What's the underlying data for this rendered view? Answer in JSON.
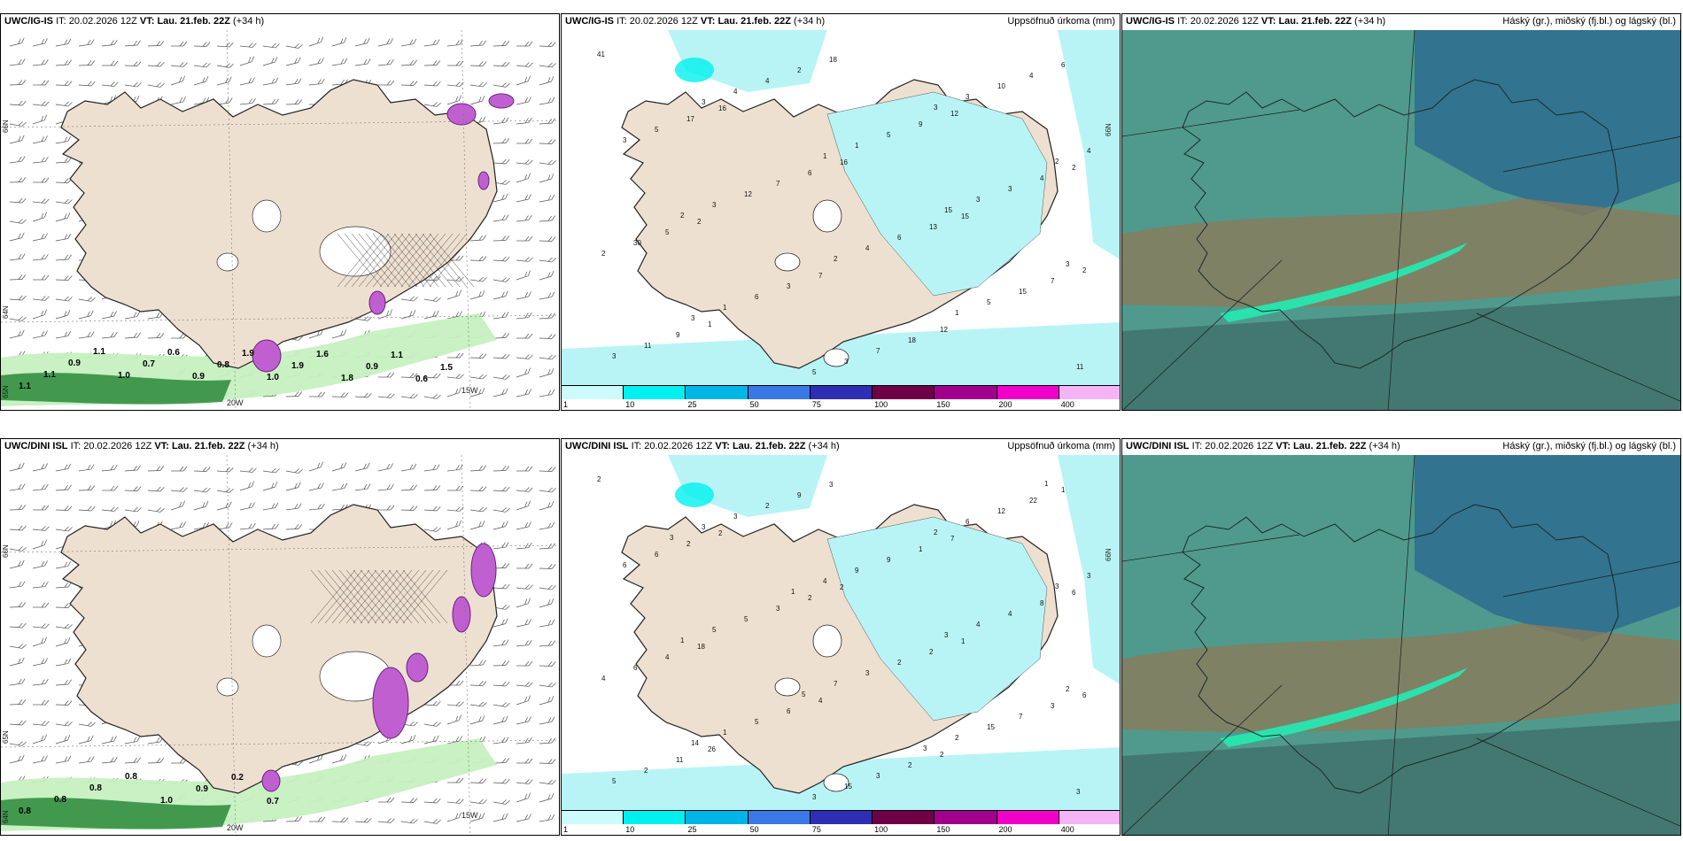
{
  "rows": [
    {
      "model": "UWC/IG-IS",
      "it_label": "IT:",
      "it": "20.02.2026 12Z",
      "vt_label": "VT:",
      "vt": "Lau. 21.feb. 22Z",
      "lead": "(+34 h)",
      "lon_labels": [
        "20W",
        "15W"
      ],
      "lat_labels": [
        "66N",
        "64N",
        "65N"
      ],
      "gust_values": [
        "1.1",
        "1.1",
        "0.9",
        "1.1",
        "1.0",
        "0.7",
        "0.6",
        "0.9",
        "0.8",
        "1.9",
        "1.0",
        "1.9",
        "1.6",
        "1.8",
        "0.9",
        "1.1",
        "0.6",
        "1.5"
      ],
      "precip_values": [
        "41",
        "16",
        "16",
        "15",
        "2",
        "1",
        "18",
        "12",
        "2",
        "2",
        "7",
        "12",
        "6",
        "17",
        "6",
        "13",
        "7",
        "9",
        "2",
        "9",
        "4",
        "5",
        "3",
        "18",
        "4",
        "5",
        "7",
        "6",
        "15",
        "11",
        "4",
        "5",
        "3",
        "30",
        "6",
        "7",
        "10",
        "3",
        "12",
        "4",
        "5",
        "3",
        "4",
        "1",
        "3",
        "2",
        "1",
        "3",
        "3",
        "4",
        "3",
        "2",
        "1",
        "11",
        "3",
        "1",
        "15",
        "3",
        "3",
        "5",
        "3",
        "2",
        "2"
      ]
    },
    {
      "model": "UWC/DINI ISL",
      "it_label": "IT:",
      "it": "20.02.2026 12Z",
      "vt_label": "VT:",
      "vt": "Lau. 21.feb. 22Z",
      "lead": "(+34 h)",
      "lon_labels": [
        "20W",
        "15W"
      ],
      "lat_labels": [
        "66N",
        "65N",
        "64N"
      ],
      "gust_values": [
        "0.8",
        "0.8",
        "0.8",
        "0.8",
        "1.0",
        "0.9",
        "0.2",
        "0.7"
      ],
      "precip_values": [
        "2",
        "2",
        "2",
        "1",
        "6",
        "26",
        "3",
        "7",
        "6",
        "18",
        "4",
        "2",
        "1",
        "2",
        "2",
        "2",
        "3",
        "11",
        "9",
        "1",
        "8",
        "4",
        "6",
        "2",
        "22",
        "6",
        "3",
        "2",
        "7",
        "2",
        "2",
        "9",
        "4",
        "6",
        "5",
        "3",
        "12",
        "6",
        "5",
        "3",
        "15",
        "5",
        "3",
        "9",
        "4",
        "4",
        "1",
        "15",
        "6",
        "3",
        "5",
        "7",
        "2",
        "3",
        "3",
        "4",
        "3",
        "2",
        "14",
        "3",
        "2",
        "3",
        "1",
        "5",
        "3",
        "1",
        "3",
        "1"
      ]
    }
  ],
  "precip_title": "Uppsöfnuð úrkoma (mm)",
  "cloud_title": "Háský (gr.), miðský (fj.bl.) og lágský (bl.)",
  "colorbar": {
    "ticks": [
      "1",
      "10",
      "25",
      "50",
      "75",
      "100",
      "150",
      "200",
      "400"
    ],
    "colors": [
      "#cdfafa",
      "#00f0f0",
      "#00b4e6",
      "#3a78e6",
      "#2e2eb4",
      "#6e0046",
      "#a0008c",
      "#f000c8",
      "#f5b4f5"
    ]
  },
  "colors": {
    "land": "#eee0d0",
    "precip_light": "#b8f4f6",
    "gust_green_light": "#c6f0c0",
    "gust_green_dark": "#2a8a3a",
    "cloud_teal": "#4f9a8c",
    "cloud_blue": "#2f6f8f",
    "cloud_brown": "#8a7a5a",
    "cloud_bright": "#28e6b0",
    "snow_magenta": "#c060d0"
  }
}
